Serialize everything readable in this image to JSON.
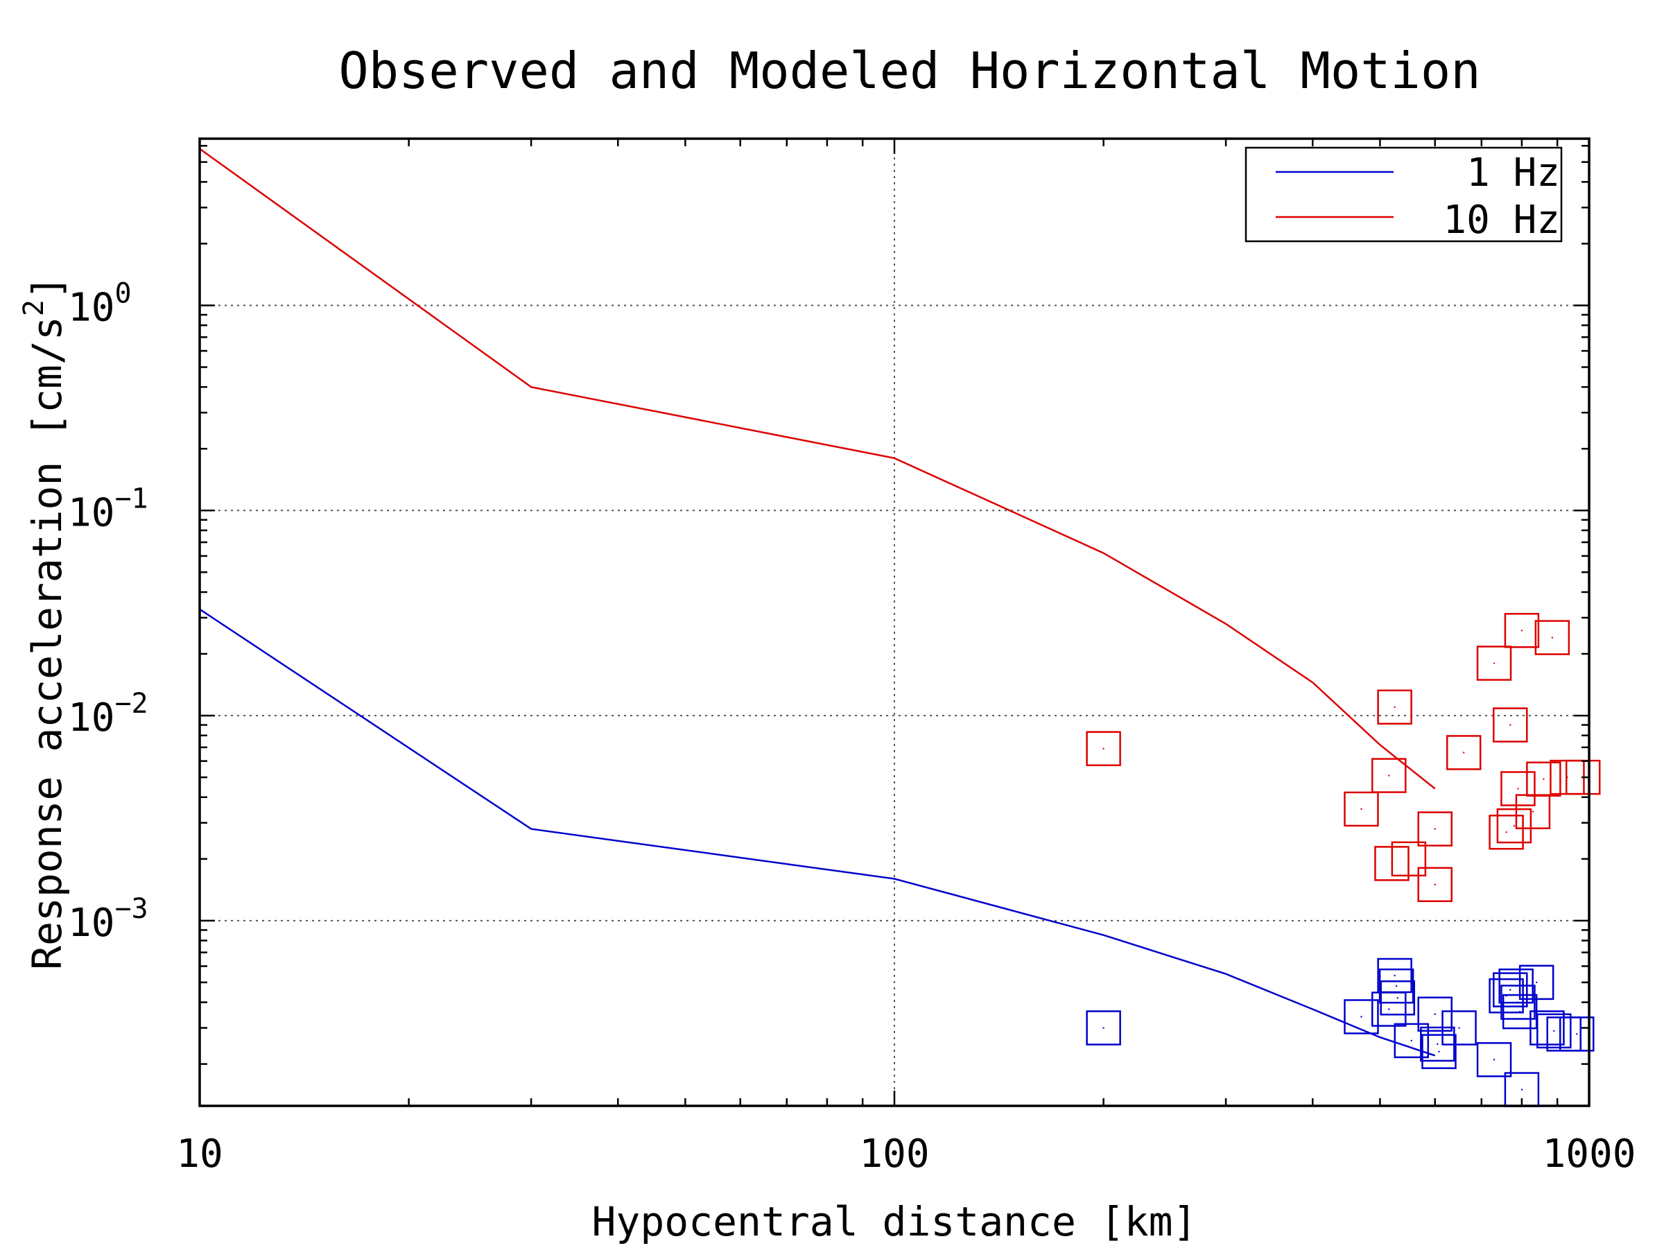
{
  "chart_data": {
    "type": "scatter",
    "title": "Observed and Modeled Horizontal Motion",
    "xlabel": "Hypocentral distance [km]",
    "ylabel_main": "Response acceleration [cm/s",
    "ylabel_sup": "2",
    "ylabel_close": "]",
    "x_scale": "log",
    "y_scale": "log",
    "xlim": [
      10,
      1000
    ],
    "ylim": [
      0.000125,
      6.5
    ],
    "x_ticks": [
      {
        "value": 10,
        "label": "10"
      },
      {
        "value": 100,
        "label": "100"
      },
      {
        "value": 1000,
        "label": "1000"
      }
    ],
    "y_ticks": [
      {
        "value": 1,
        "base": "10",
        "exp": "0"
      },
      {
        "value": 0.1,
        "base": "10",
        "exp": "−1"
      },
      {
        "value": 0.01,
        "base": "10",
        "exp": "−2"
      },
      {
        "value": 0.001,
        "base": "10",
        "exp": "−3"
      }
    ],
    "grid": true,
    "legend_position": "top-right",
    "legend": [
      {
        "label": "1 Hz",
        "color": "#0000cc"
      },
      {
        "label": "10 Hz",
        "color": "#dd0000"
      }
    ],
    "series": [
      {
        "name": "1 Hz",
        "kind": "line",
        "color": "#0000cc",
        "points": [
          [
            10,
            0.033
          ],
          [
            30,
            0.0028
          ],
          [
            100,
            0.0016
          ],
          [
            200,
            0.00085
          ],
          [
            300,
            0.00055
          ],
          [
            400,
            0.00037
          ],
          [
            500,
            0.00027
          ],
          [
            600,
            0.00022
          ]
        ]
      },
      {
        "name": "10 Hz",
        "kind": "line",
        "color": "#dd0000",
        "points": [
          [
            10,
            5.8
          ],
          [
            30,
            0.4
          ],
          [
            100,
            0.18
          ],
          [
            200,
            0.062
          ],
          [
            300,
            0.028
          ],
          [
            400,
            0.0145
          ],
          [
            500,
            0.0072
          ],
          [
            600,
            0.0044
          ]
        ]
      },
      {
        "name": "1 Hz observed",
        "kind": "markers",
        "color": "#0000cc",
        "points": [
          [
            200,
            0.0003
          ],
          [
            470,
            0.00034
          ],
          [
            515,
            0.00037
          ],
          [
            525,
            0.00054
          ],
          [
            528,
            0.00048
          ],
          [
            530,
            0.00042
          ],
          [
            555,
            0.00026
          ],
          [
            600,
            0.00035
          ],
          [
            605,
            0.00025
          ],
          [
            608,
            0.00023
          ],
          [
            650,
            0.0003
          ],
          [
            730,
            0.00021
          ],
          [
            760,
            0.00043
          ],
          [
            770,
            0.00046
          ],
          [
            785,
            0.00048
          ],
          [
            790,
            0.0004
          ],
          [
            795,
            0.00036
          ],
          [
            800,
            0.00015
          ],
          [
            840,
            0.0005
          ],
          [
            870,
            0.0003
          ],
          [
            890,
            0.00029
          ],
          [
            920,
            0.00028
          ],
          [
            960,
            0.00028
          ]
        ]
      },
      {
        "name": "10 Hz observed",
        "kind": "markers",
        "color": "#dd0000",
        "points": [
          [
            200,
            0.0069
          ],
          [
            470,
            0.0035
          ],
          [
            515,
            0.0051
          ],
          [
            525,
            0.011
          ],
          [
            520,
            0.0019
          ],
          [
            550,
            0.002
          ],
          [
            600,
            0.0028
          ],
          [
            600,
            0.0015
          ],
          [
            660,
            0.0066
          ],
          [
            730,
            0.018
          ],
          [
            760,
            0.0027
          ],
          [
            770,
            0.009
          ],
          [
            780,
            0.0029
          ],
          [
            790,
            0.0044
          ],
          [
            800,
            0.026
          ],
          [
            830,
            0.0034
          ],
          [
            860,
            0.0049
          ],
          [
            885,
            0.024
          ],
          [
            930,
            0.005
          ],
          [
            980,
            0.005
          ]
        ]
      }
    ]
  }
}
